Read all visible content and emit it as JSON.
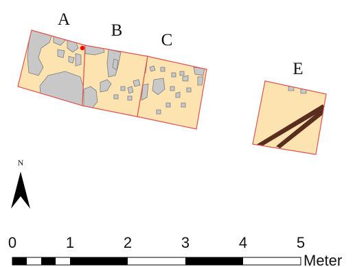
{
  "map": {
    "plots": [
      {
        "label": "A"
      },
      {
        "label": "B"
      },
      {
        "label": "C"
      },
      {
        "label": "E"
      }
    ],
    "north_label": "N",
    "scale_bar": {
      "ticks": [
        "0",
        "1",
        "2",
        "3",
        "4",
        "5"
      ],
      "unit": "Meter"
    },
    "colors": {
      "plot_fill": "#fde3b0",
      "plot_border": "#e05050",
      "rock_fill": "#c8c8c8",
      "rock_stroke": "#7a7a7a",
      "root_fill": "#5a2e1e",
      "marker": "#ff0000",
      "ink": "#000000"
    }
  }
}
